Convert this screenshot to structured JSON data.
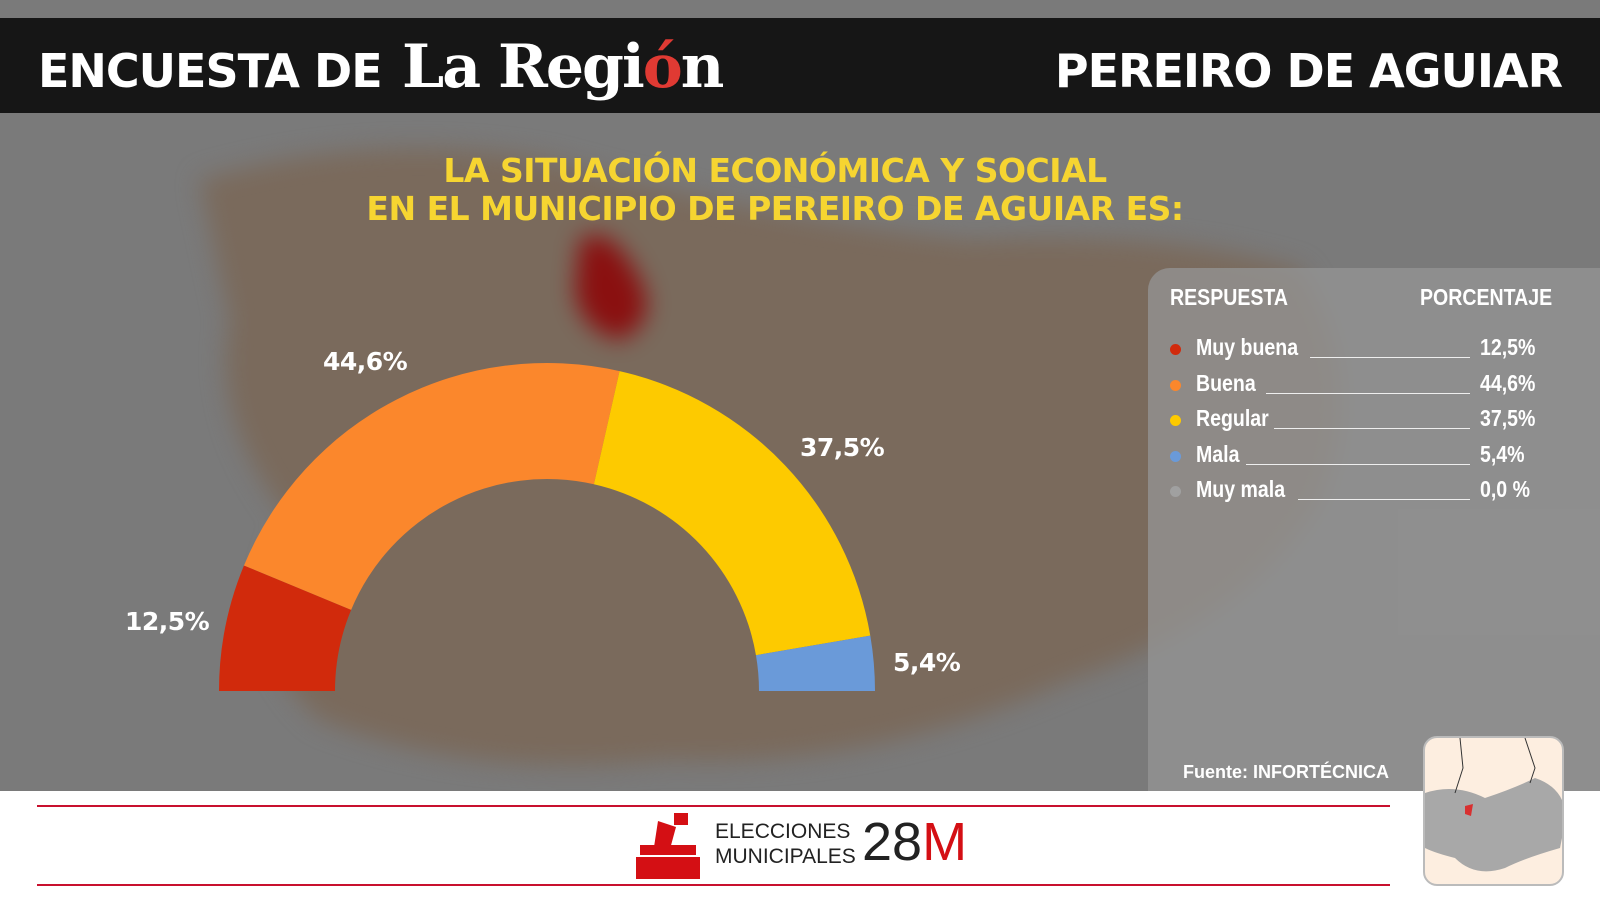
{
  "header": {
    "left": "ENCUESTA DE",
    "logo": "La Región",
    "right": "PEREIRO DE AGUIAR"
  },
  "title": [
    "LA SITUACIÓN ECONÓMICA Y SOCIAL",
    "EN EL MUNICIPIO DE PEREIRO DE AGUIAR ES:"
  ],
  "chart_data": {
    "type": "pie",
    "variant": "half-donut",
    "categories": [
      "Muy buena",
      "Buena",
      "Regular",
      "Mala",
      "Muy mala"
    ],
    "values": [
      12.5,
      44.6,
      37.5,
      5.4,
      0.0
    ],
    "data_labels": [
      "12,5%",
      "44,6%",
      "37,5%",
      "5,4%",
      ""
    ],
    "colors": [
      "#d12a0c",
      "#fb872c",
      "#fdca00",
      "#6a9ad9",
      "#a0a0a0"
    ],
    "legend_placement": "right"
  },
  "legend": {
    "header_left": "RESPUESTA",
    "header_right": "PORCENTAJE",
    "items": [
      {
        "label": "Muy buena",
        "value": "12,5%"
      },
      {
        "label": "Buena",
        "value": "44,6%"
      },
      {
        "label": "Regular",
        "value": "37,5%"
      },
      {
        "label": "Mala",
        "value": "5,4%"
      },
      {
        "label": "Muy mala",
        "value": "0,0 %"
      }
    ]
  },
  "source": "Fuente: INFORTÉCNICA",
  "footer": {
    "line1": "ELECCIONES",
    "line2": "MUNICIPALES",
    "big": "28",
    "big_accent": "M",
    "accent_color": "#d40f14"
  }
}
